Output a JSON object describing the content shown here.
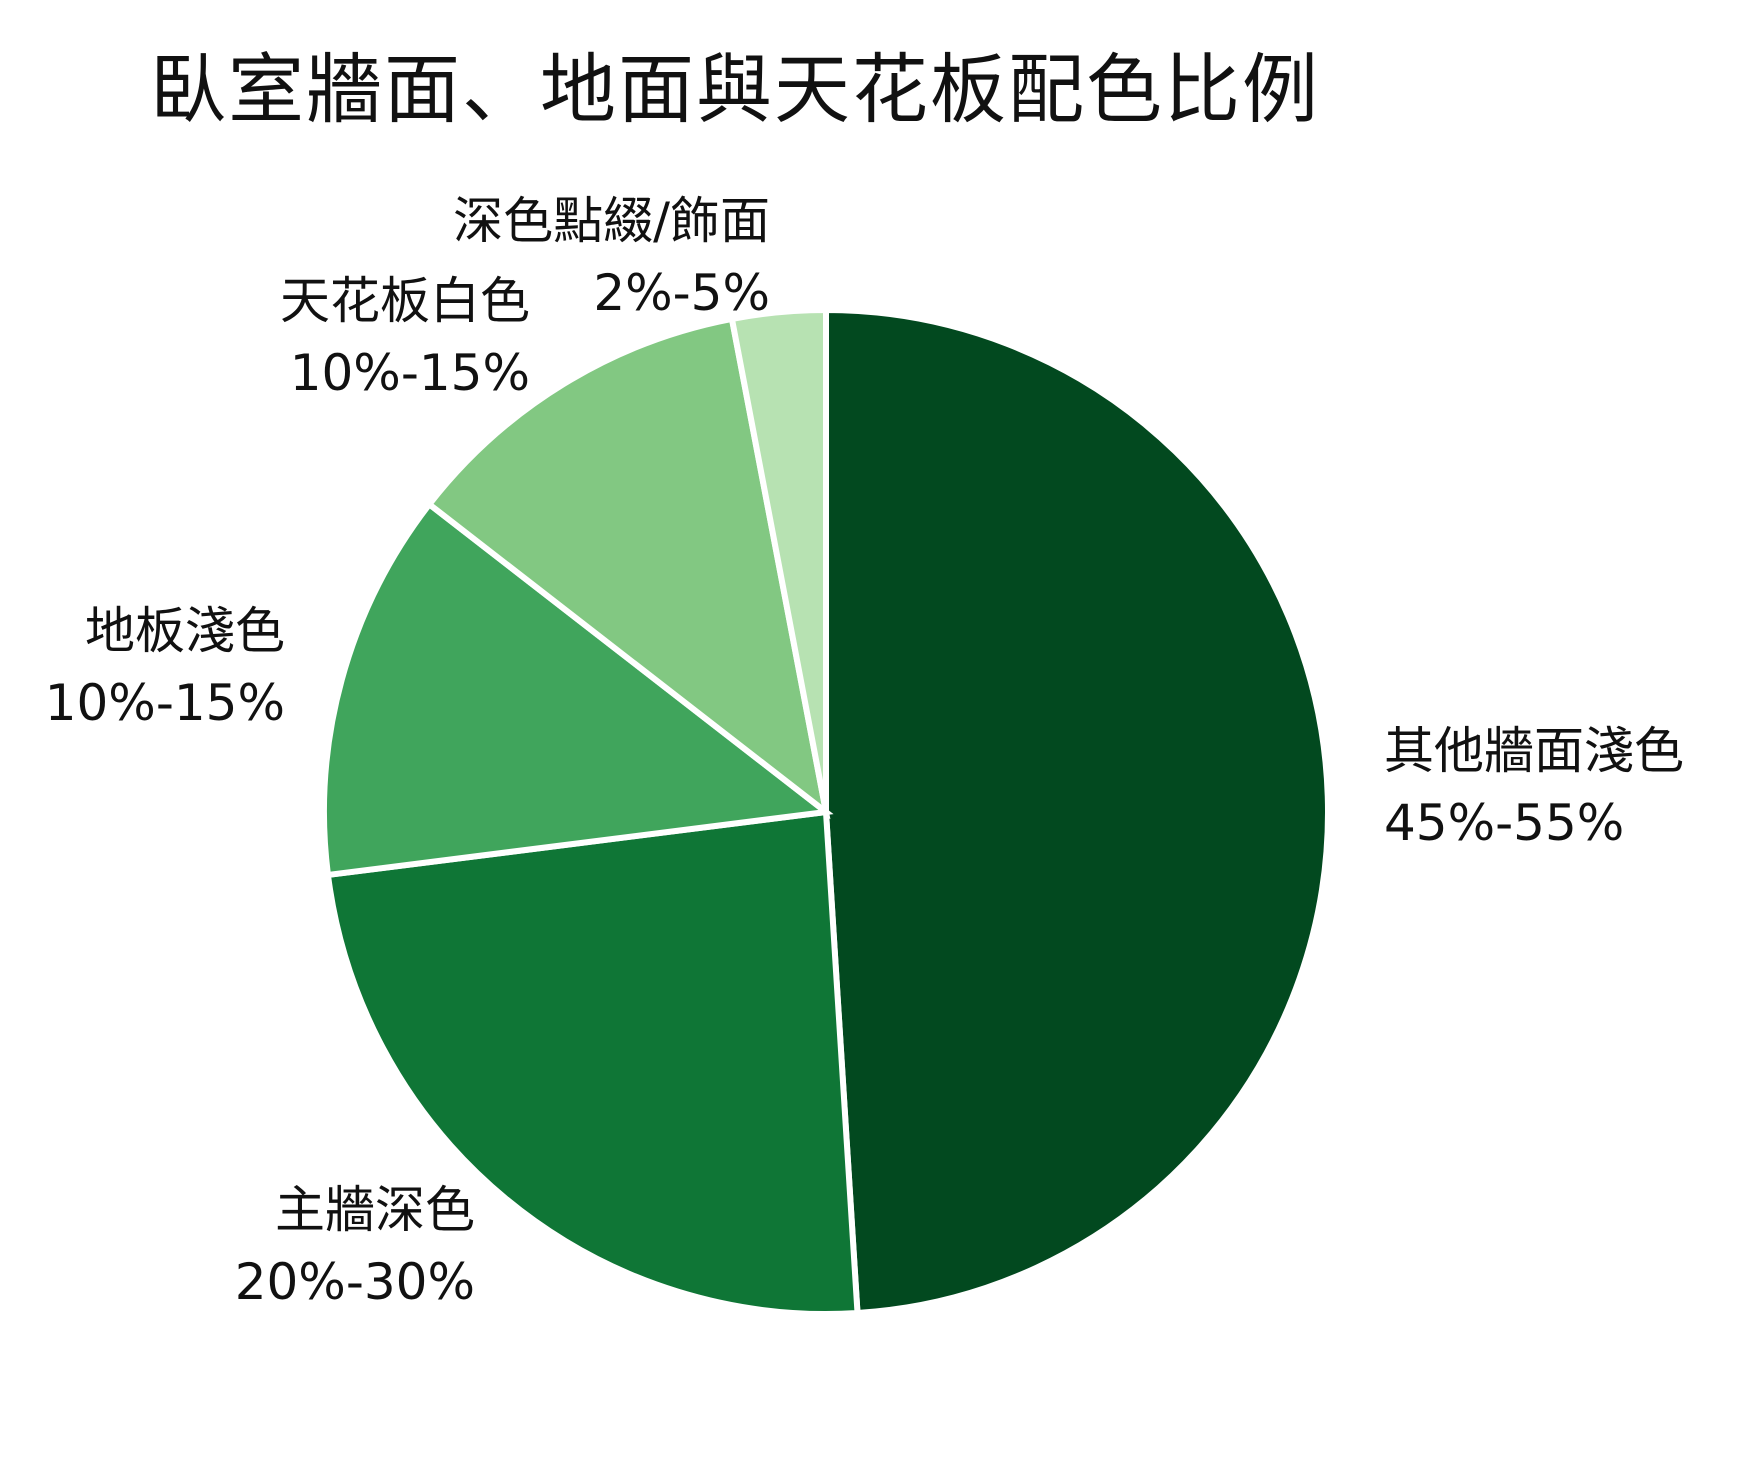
{
  "chart_data": {
    "type": "pie",
    "title": "臥室牆面、地面與天花板配色比例",
    "slices": [
      {
        "name": "其他牆面淺色",
        "range": "45%-55%",
        "value": 49,
        "color": "#02491f"
      },
      {
        "name": "主牆深色",
        "range": "20%-30%",
        "value": 24,
        "color": "#0f7636"
      },
      {
        "name": "地板淺色",
        "range": "10%-15%",
        "value": 12.5,
        "color": "#40a55c"
      },
      {
        "name": "天花板白色",
        "range": "10%-15%",
        "value": 11.5,
        "color": "#82c882"
      },
      {
        "name": "深色點綴/飾面",
        "range": "2%-5%",
        "value": 3,
        "color": "#b7e2b2"
      }
    ],
    "start_angle": "12 o'clock",
    "direction": "clockwise",
    "legend": "none"
  }
}
